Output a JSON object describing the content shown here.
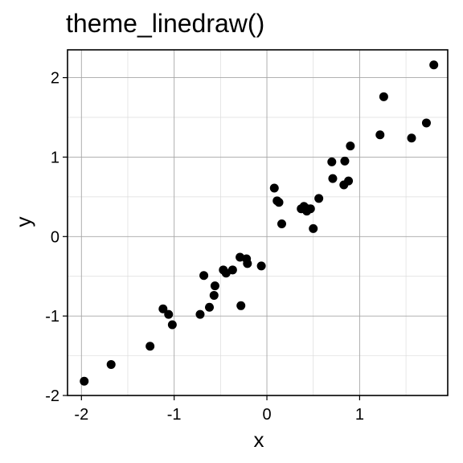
{
  "chart_data": {
    "type": "scatter",
    "title": "theme_linedraw()",
    "xlabel": "x",
    "ylabel": "y",
    "xlim": [
      -2.15,
      1.95
    ],
    "ylim": [
      -2.0,
      2.35
    ],
    "xticks": [
      -2,
      -1,
      0,
      1
    ],
    "yticks": [
      -2,
      -1,
      0,
      1,
      2
    ],
    "xtick_labels": [
      "-2",
      "-1",
      "0",
      "1"
    ],
    "ytick_labels": [
      "-2",
      "-1",
      "0",
      "1",
      "2"
    ],
    "x_minor": [
      -1.5,
      -0.5,
      0.5,
      1.5
    ],
    "y_minor": [
      -1.5,
      -0.5,
      0.5,
      1.5
    ],
    "grid": true,
    "series": [
      {
        "color": "#000000",
        "x": [
          -1.97,
          -1.68,
          -1.26,
          -1.12,
          -1.06,
          -1.02,
          -0.72,
          -0.68,
          -0.62,
          -0.57,
          -0.56,
          -0.47,
          -0.44,
          -0.37,
          -0.29,
          -0.28,
          -0.22,
          -0.21,
          -0.06,
          0.08,
          0.11,
          0.13,
          0.16,
          0.37,
          0.4,
          0.43,
          0.44,
          0.47,
          0.5,
          0.56,
          0.7,
          0.71,
          0.83,
          0.84,
          0.88,
          0.9,
          1.22,
          1.26,
          1.56,
          1.72,
          1.8
        ],
        "y": [
          -1.82,
          -1.61,
          -1.38,
          -0.91,
          -0.98,
          -1.11,
          -0.98,
          -0.49,
          -0.89,
          -0.74,
          -0.62,
          -0.42,
          -0.46,
          -0.42,
          -0.26,
          -0.87,
          -0.28,
          -0.34,
          -0.37,
          0.61,
          0.45,
          0.43,
          0.16,
          0.35,
          0.38,
          0.32,
          0.35,
          0.35,
          0.1,
          0.48,
          0.94,
          0.73,
          0.65,
          0.95,
          0.7,
          1.14,
          1.28,
          1.76,
          1.24,
          1.43,
          2.16
        ]
      }
    ]
  }
}
